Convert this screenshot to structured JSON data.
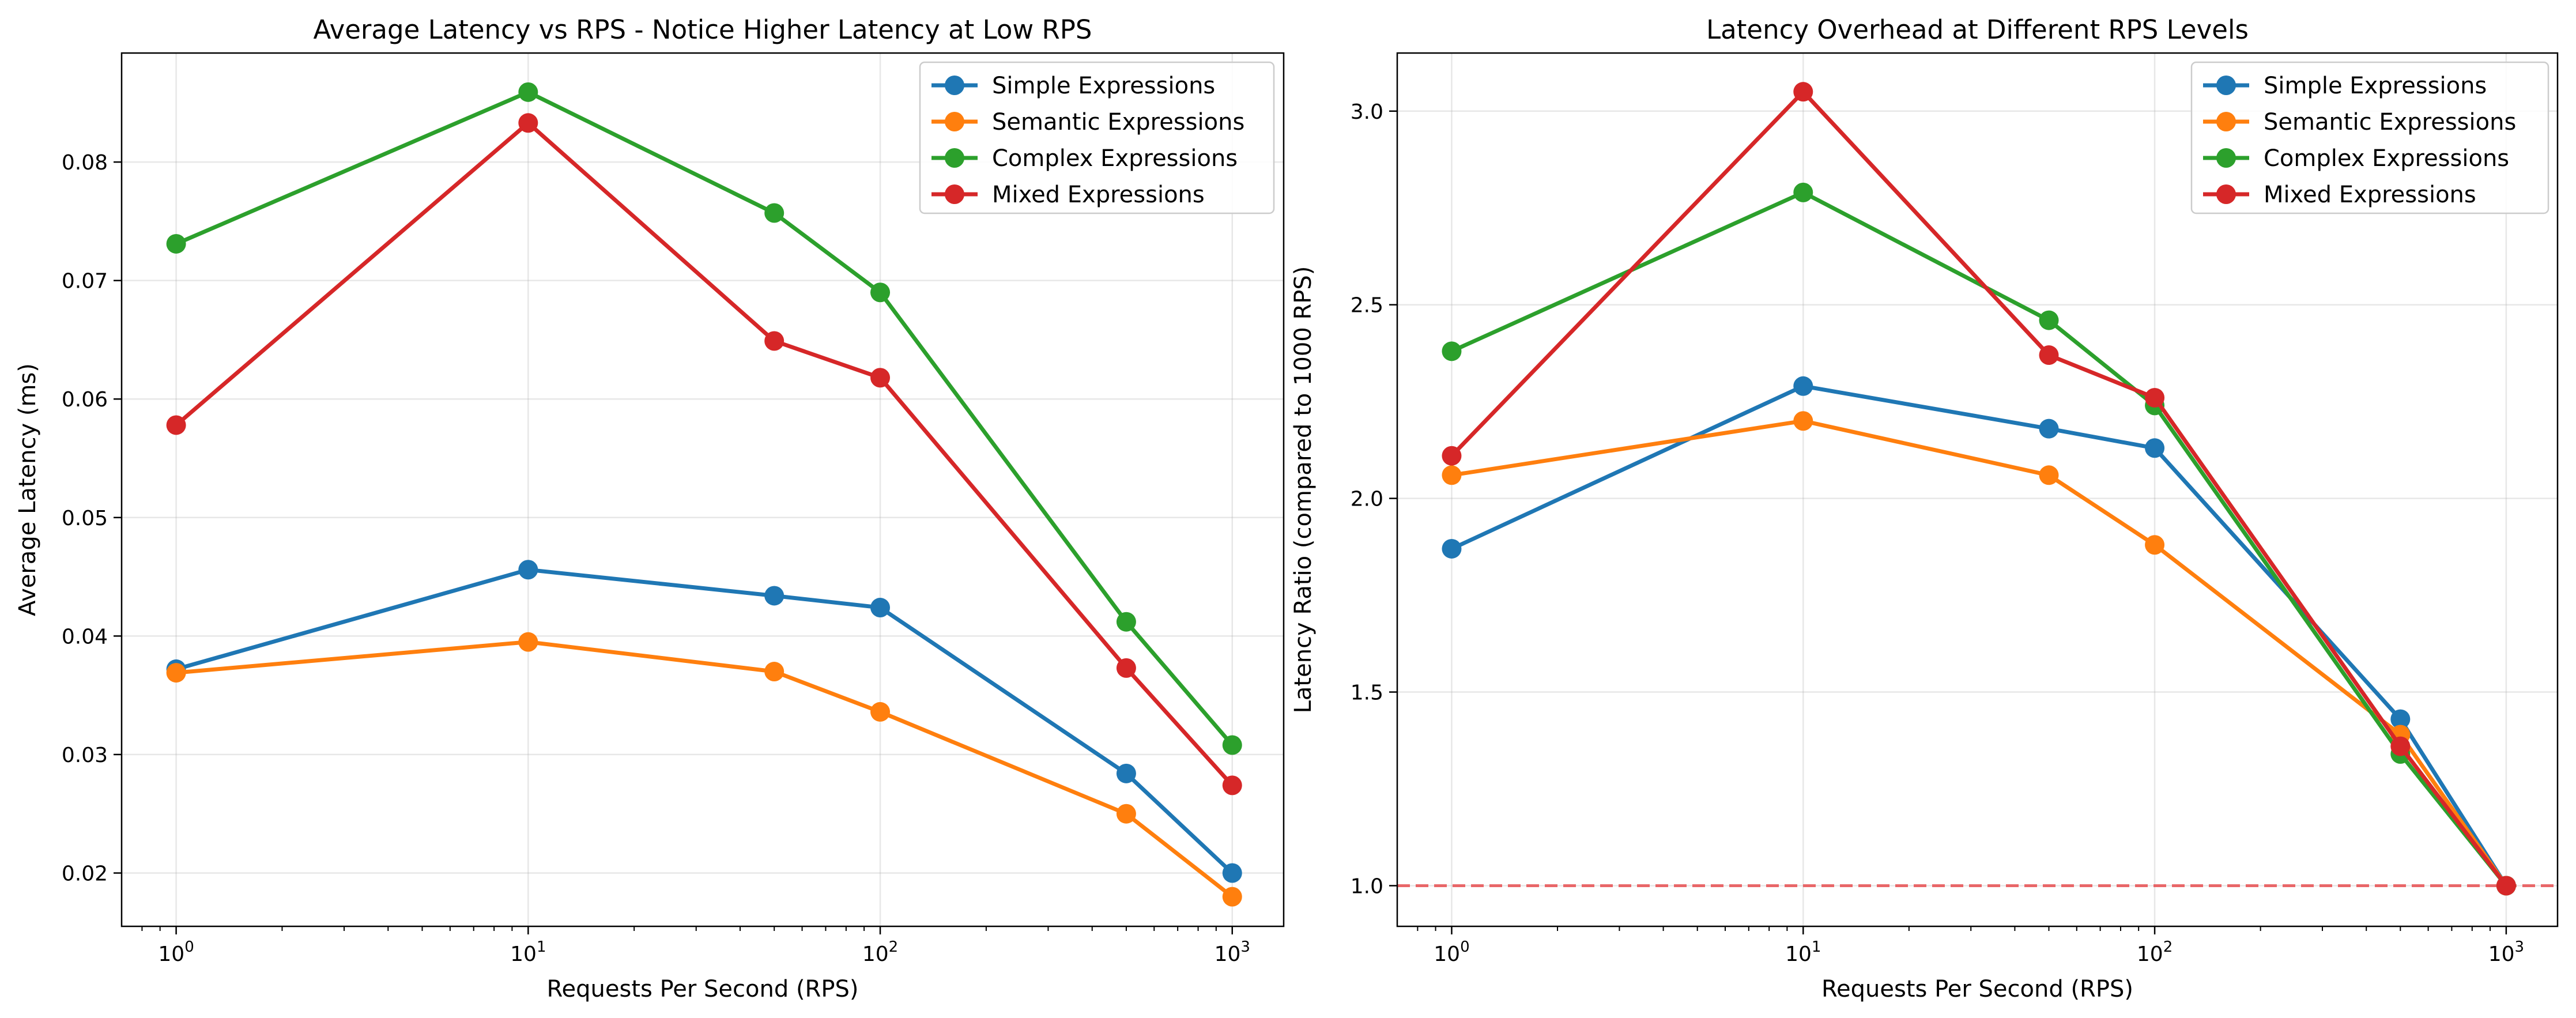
{
  "colors": {
    "simple": "#1f77b4",
    "semantic": "#ff7f0e",
    "complex": "#2ca02c",
    "mixed": "#d62728",
    "reference_line": "#e8585a"
  },
  "chart_data": [
    {
      "type": "line",
      "title": "Average Latency vs RPS - Notice Higher Latency at Low RPS",
      "xlabel": "Requests Per Second (RPS)",
      "ylabel": "Average Latency (ms)",
      "x_scale": "log",
      "x": [
        1,
        10,
        50,
        100,
        500,
        1000
      ],
      "xlim": [
        0.7,
        1400
      ],
      "ylim": [
        0.0155,
        0.0892
      ],
      "x_ticks": [
        {
          "value": 1,
          "base": "10",
          "exp": "0"
        },
        {
          "value": 10,
          "base": "10",
          "exp": "1"
        },
        {
          "value": 100,
          "base": "10",
          "exp": "2"
        },
        {
          "value": 1000,
          "base": "10",
          "exp": "3"
        }
      ],
      "y_ticks": [
        {
          "value": 0.02,
          "label": "0.02"
        },
        {
          "value": 0.03,
          "label": "0.03"
        },
        {
          "value": 0.04,
          "label": "0.04"
        },
        {
          "value": 0.05,
          "label": "0.05"
        },
        {
          "value": 0.06,
          "label": "0.06"
        },
        {
          "value": 0.07,
          "label": "0.07"
        },
        {
          "value": 0.08,
          "label": "0.08"
        }
      ],
      "grid": true,
      "legend_position": "top-right",
      "series": [
        {
          "name": "Simple Expressions",
          "color_key": "simple",
          "values": [
            0.0372,
            0.0456,
            0.0434,
            0.0424,
            0.0284,
            0.02
          ]
        },
        {
          "name": "Semantic Expressions",
          "color_key": "semantic",
          "values": [
            0.0369,
            0.0395,
            0.037,
            0.0336,
            0.025,
            0.018
          ]
        },
        {
          "name": "Complex Expressions",
          "color_key": "complex",
          "values": [
            0.0731,
            0.0859,
            0.0757,
            0.069,
            0.0412,
            0.0308
          ]
        },
        {
          "name": "Mixed Expressions",
          "color_key": "mixed",
          "values": [
            0.0578,
            0.0833,
            0.0649,
            0.0618,
            0.0373,
            0.0274
          ]
        }
      ]
    },
    {
      "type": "line",
      "title": "Latency Overhead at Different RPS Levels",
      "xlabel": "Requests Per Second (RPS)",
      "ylabel": "Latency Ratio (compared to 1000 RPS)",
      "x_scale": "log",
      "x": [
        1,
        10,
        50,
        100,
        500,
        1000
      ],
      "xlim": [
        0.7,
        1400
      ],
      "ylim": [
        0.895,
        3.15
      ],
      "reference_line": {
        "y": 1.0,
        "style": "dashed"
      },
      "x_ticks": [
        {
          "value": 1,
          "base": "10",
          "exp": "0"
        },
        {
          "value": 10,
          "base": "10",
          "exp": "1"
        },
        {
          "value": 100,
          "base": "10",
          "exp": "2"
        },
        {
          "value": 1000,
          "base": "10",
          "exp": "3"
        }
      ],
      "y_ticks": [
        {
          "value": 1.0,
          "label": "1.0"
        },
        {
          "value": 1.5,
          "label": "1.5"
        },
        {
          "value": 2.0,
          "label": "2.0"
        },
        {
          "value": 2.5,
          "label": "2.5"
        },
        {
          "value": 3.0,
          "label": "3.0"
        }
      ],
      "grid": true,
      "legend_position": "top-right",
      "series": [
        {
          "name": "Simple Expressions",
          "color_key": "simple",
          "values": [
            1.87,
            2.29,
            2.18,
            2.13,
            1.43,
            1.0
          ]
        },
        {
          "name": "Semantic Expressions",
          "color_key": "semantic",
          "values": [
            2.06,
            2.2,
            2.06,
            1.88,
            1.39,
            1.0
          ]
        },
        {
          "name": "Complex Expressions",
          "color_key": "complex",
          "values": [
            2.38,
            2.79,
            2.46,
            2.24,
            1.34,
            1.0
          ]
        },
        {
          "name": "Mixed Expressions",
          "color_key": "mixed",
          "values": [
            2.11,
            3.05,
            2.37,
            2.26,
            1.36,
            1.0
          ]
        }
      ]
    }
  ]
}
